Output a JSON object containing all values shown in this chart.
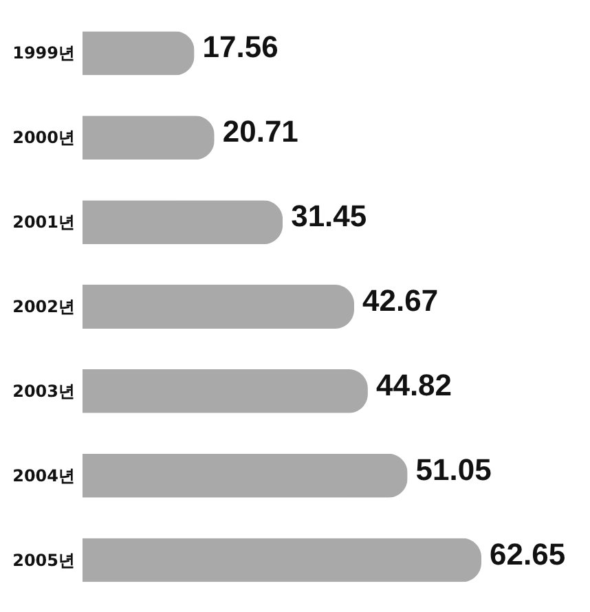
{
  "chart_data": {
    "type": "bar",
    "orientation": "horizontal",
    "categories": [
      "1999년",
      "2000년",
      "2001년",
      "2002년",
      "2003년",
      "2004년",
      "2005년"
    ],
    "values": [
      17.56,
      20.71,
      31.45,
      42.67,
      44.82,
      51.05,
      62.65
    ],
    "color": "#a9a9a9",
    "data_labels": true
  }
}
